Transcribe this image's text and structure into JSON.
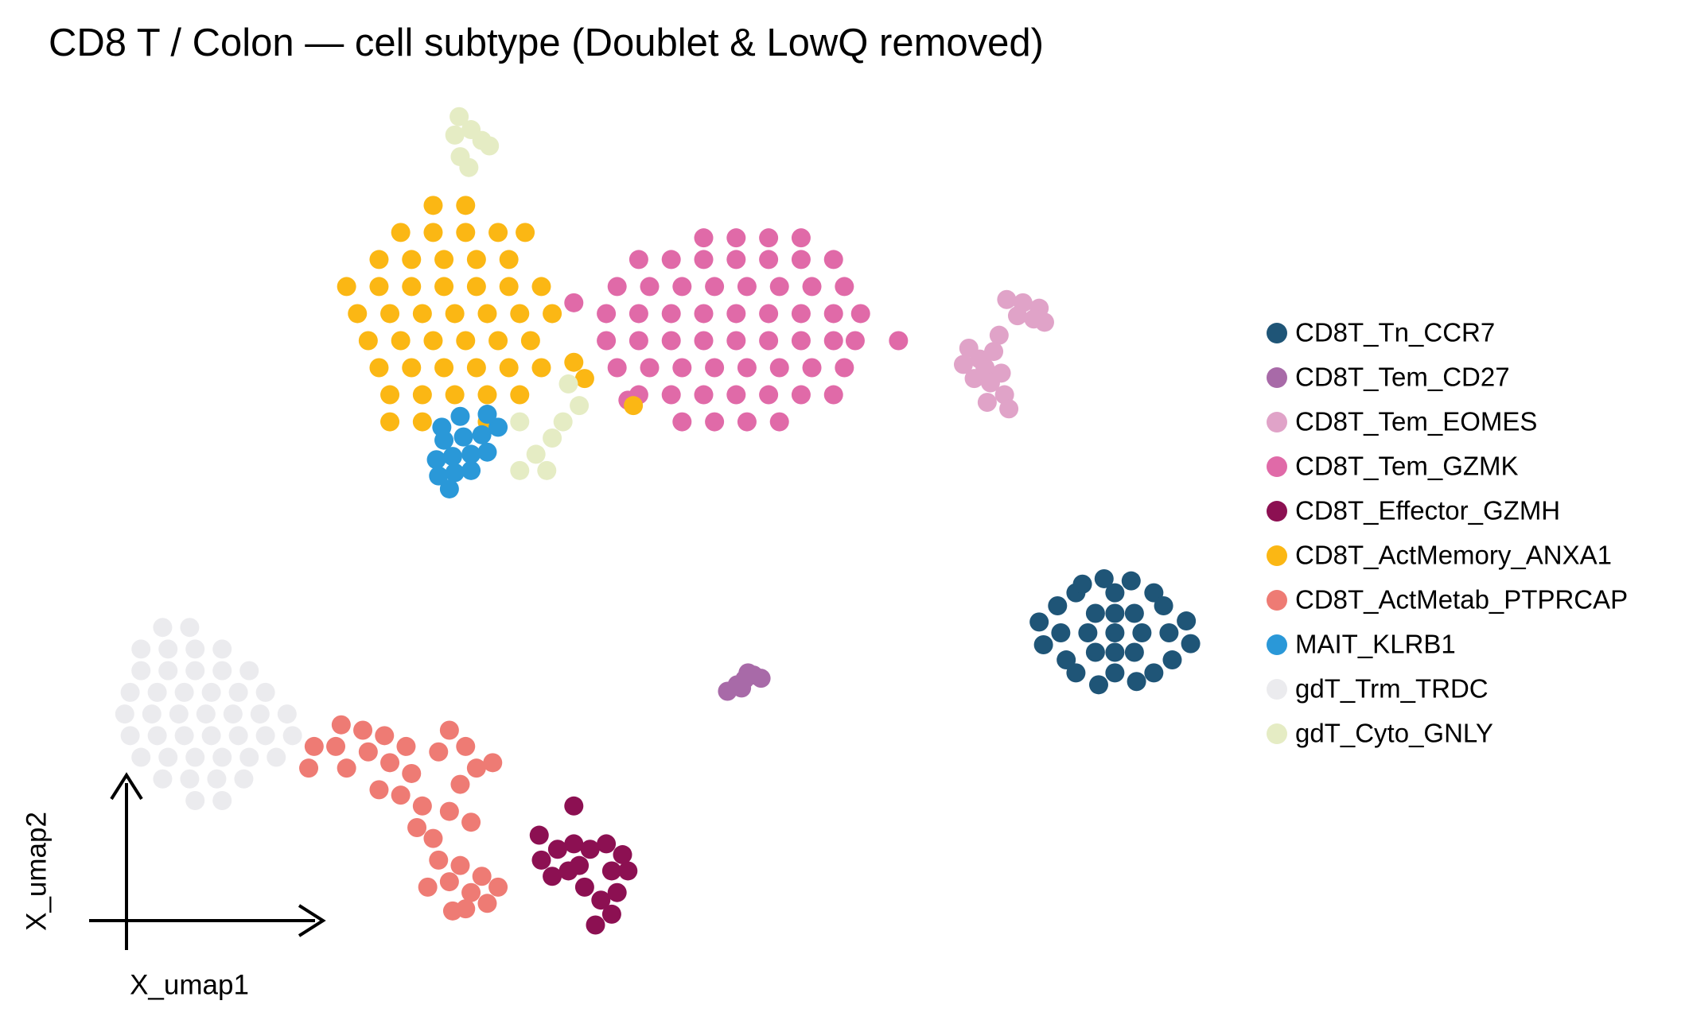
{
  "chart_data": {
    "type": "scatter",
    "title": "CD8 T / Colon — cell subtype (Doublet & LowQ removed)",
    "x_label": "X_umap1",
    "y_label": "X_umap2",
    "xlim": [
      -4,
      104
    ],
    "ylim": [
      -2,
      83
    ],
    "legend": "right",
    "series": [
      {
        "name": "CD8T_Tn_CCR7",
        "color": "#1f5577",
        "x": [
          93,
          95.5,
          90.5,
          93,
          93,
          94.8,
          91.2,
          94.8,
          91.2,
          98,
          88,
          93,
          93,
          96.6,
          89.4,
          96.6,
          89.4,
          99.6,
          86.4,
          94.5,
          91.5,
          98.3,
          87.7,
          100,
          86,
          97.5,
          88.5,
          92,
          95,
          90
        ],
        "values": [
          31.5,
          31.5,
          31.5,
          33.3,
          29.7,
          33.3,
          33.3,
          29.7,
          29.7,
          31.5,
          31.5,
          35.2,
          27.8,
          35.2,
          35.2,
          27.8,
          27.8,
          32.6,
          30.4,
          36.3,
          26.7,
          29,
          34,
          30.5,
          32.5,
          34,
          29,
          36.5,
          27,
          36
        ]
      },
      {
        "name": "CD8T_Tem_CD27",
        "color": "#a86aa8",
        "x": [
          57.2,
          58.1,
          58.8,
          59.6,
          60.3,
          59.1,
          58.5
        ],
        "values": [
          26.1,
          26.7,
          27.2,
          27.6,
          27.3,
          27.8,
          26.4
        ]
      },
      {
        "name": "CD8T_Tem_EOMES",
        "color": "#e0a3c8",
        "x": [
          83,
          84.5,
          86,
          85.5,
          84,
          86.5,
          82.3,
          81.8,
          80.5,
          79,
          81,
          82.5,
          80,
          81.5,
          82.8,
          81.2,
          83.2,
          79.5
        ],
        "values": [
          62.3,
          62,
          61.5,
          60.5,
          60.8,
          60.2,
          59,
          57.5,
          56.8,
          56.3,
          56,
          55.5,
          55,
          54.6,
          53.5,
          52.8,
          52.2,
          57.8
        ]
      },
      {
        "name": "CD8T_Tem_GZMK",
        "color": "#e06aa8",
        "x": [
          55,
          58,
          61,
          64,
          49,
          52,
          55,
          58,
          61,
          64,
          67,
          47,
          50,
          53,
          56,
          59,
          62,
          65,
          68,
          46,
          49,
          52,
          55,
          58,
          61,
          64,
          67,
          69.5,
          46,
          49,
          52,
          55,
          58,
          61,
          64,
          67,
          69,
          47,
          50,
          53,
          56,
          59,
          62,
          65,
          68,
          49,
          52,
          55,
          58,
          61,
          64,
          67,
          53,
          56,
          59,
          62,
          73,
          43,
          48
        ],
        "values": [
          68,
          68,
          68,
          68,
          66,
          66,
          66,
          66,
          66,
          66,
          66,
          63.5,
          63.5,
          63.5,
          63.5,
          63.5,
          63.5,
          63.5,
          63.5,
          61,
          61,
          61,
          61,
          61,
          61,
          61,
          61,
          61,
          58.5,
          58.5,
          58.5,
          58.5,
          58.5,
          58.5,
          58.5,
          58.5,
          58.5,
          56,
          56,
          56,
          56,
          56,
          56,
          56,
          56,
          53.5,
          53.5,
          53.5,
          53.5,
          53.5,
          53.5,
          53.5,
          51,
          51,
          51,
          51,
          58.5,
          62,
          53
        ]
      },
      {
        "name": "CD8T_Effector_GZMH",
        "color": "#8c1052",
        "x": [
          40,
          41.5,
          43,
          44.5,
          46,
          47.5,
          48,
          46.5,
          47,
          46.5,
          45,
          45.5,
          44,
          42.5,
          41,
          43.5,
          43,
          39.8
        ],
        "values": [
          10.5,
          11.5,
          12,
          11.5,
          12,
          11,
          9.5,
          9.5,
          7.5,
          5.5,
          4.5,
          6.8,
          8,
          9.5,
          9,
          10,
          15.5,
          12.8
        ]
      },
      {
        "name": "CD8T_ActMemory_ANXA1",
        "color": "#fbb714",
        "x": [
          30,
          33,
          27,
          30,
          33,
          36,
          38.5,
          25,
          28,
          31,
          34,
          37,
          22,
          25,
          28,
          31,
          34,
          37,
          40,
          23,
          26,
          29,
          32,
          35,
          38,
          41,
          24,
          27,
          30,
          33,
          36,
          39,
          25,
          28,
          31,
          34,
          37,
          40,
          26,
          29,
          32,
          35,
          38,
          26,
          29,
          35,
          43,
          48.5,
          44
        ],
        "values": [
          71,
          71,
          68.5,
          68.5,
          68.5,
          68.5,
          68.5,
          66,
          66,
          66,
          66,
          66,
          63.5,
          63.5,
          63.5,
          63.5,
          63.5,
          63.5,
          63.5,
          61,
          61,
          61,
          61,
          61,
          61,
          61,
          58.5,
          58.5,
          58.5,
          58.5,
          58.5,
          58.5,
          56,
          56,
          56,
          56,
          56,
          56,
          53.5,
          53.5,
          53.5,
          53.5,
          53.5,
          51,
          51,
          51,
          56.5,
          52.5,
          55
        ]
      },
      {
        "name": "CD8T_ActMetab_PTPRCAP",
        "color": "#ee7b74",
        "x": [
          19,
          21,
          21.5,
          23.5,
          24,
          25.5,
          26,
          27.5,
          28,
          27,
          29,
          28.5,
          30,
          30.5,
          31.5,
          32.5,
          33.5,
          34.5,
          35,
          33,
          36,
          30.5,
          31.5,
          33,
          34,
          35.5,
          32.5,
          31.5,
          33.5,
          18.5,
          22,
          25,
          29.5,
          31.8
        ],
        "values": [
          21,
          21,
          23,
          22.5,
          20.5,
          22,
          19.5,
          21,
          18.5,
          16.5,
          15.5,
          13.5,
          12.5,
          10.5,
          8.5,
          10,
          7.5,
          9,
          6.5,
          6,
          8,
          20.5,
          22.5,
          21,
          19,
          19.5,
          17.5,
          15,
          14,
          19,
          19,
          17,
          8,
          5.8
        ]
      },
      {
        "name": "MAIT_KLRB1",
        "color": "#2a98d8",
        "x": [
          31.5,
          30.5,
          32,
          33.5,
          30.3,
          31.8,
          33.5,
          35,
          31,
          32.8,
          34.5,
          36,
          32.5,
          35,
          30.8
        ],
        "values": [
          44.8,
          46,
          46.3,
          46.5,
          47.5,
          47.8,
          48,
          48.2,
          49.3,
          49.6,
          49.8,
          50.5,
          51.5,
          51.7,
          50.5
        ]
      },
      {
        "name": "gdT_Trm_TRDC",
        "color": "#ebebee",
        "x": [
          5,
          7.5,
          3,
          5.5,
          8,
          10.5,
          3,
          5.5,
          8,
          10.5,
          13,
          2,
          4.5,
          7,
          9.5,
          12,
          14.5,
          1.5,
          4,
          6.5,
          9,
          11.5,
          14,
          16.5,
          2,
          4.5,
          7,
          9.5,
          12,
          14.5,
          17,
          3,
          5.5,
          8,
          10.5,
          13,
          15.5,
          5,
          7.5,
          10,
          12.5,
          8,
          10.5
        ],
        "values": [
          32,
          32,
          30,
          30,
          30,
          30,
          28,
          28,
          28,
          28,
          28,
          26,
          26,
          26,
          26,
          26,
          26,
          24,
          24,
          24,
          24,
          24,
          24,
          24,
          22,
          22,
          22,
          22,
          22,
          22,
          22,
          20,
          20,
          20,
          20,
          20,
          20,
          18,
          18,
          18,
          18,
          16,
          16
        ]
      },
      {
        "name": "gdT_Cyto_GNLY",
        "color": "#e5ecc4",
        "x": [
          32.4,
          32,
          33.5,
          34.5,
          35.2,
          32.5,
          33.3,
          38,
          39.5,
          41,
          42,
          43.5,
          40.5,
          38,
          42.5
        ],
        "values": [
          79.2,
          77.5,
          78,
          77,
          76.5,
          75.5,
          74.5,
          46.5,
          48,
          49.5,
          51,
          52.5,
          46.5,
          51,
          54.5
        ]
      }
    ]
  }
}
